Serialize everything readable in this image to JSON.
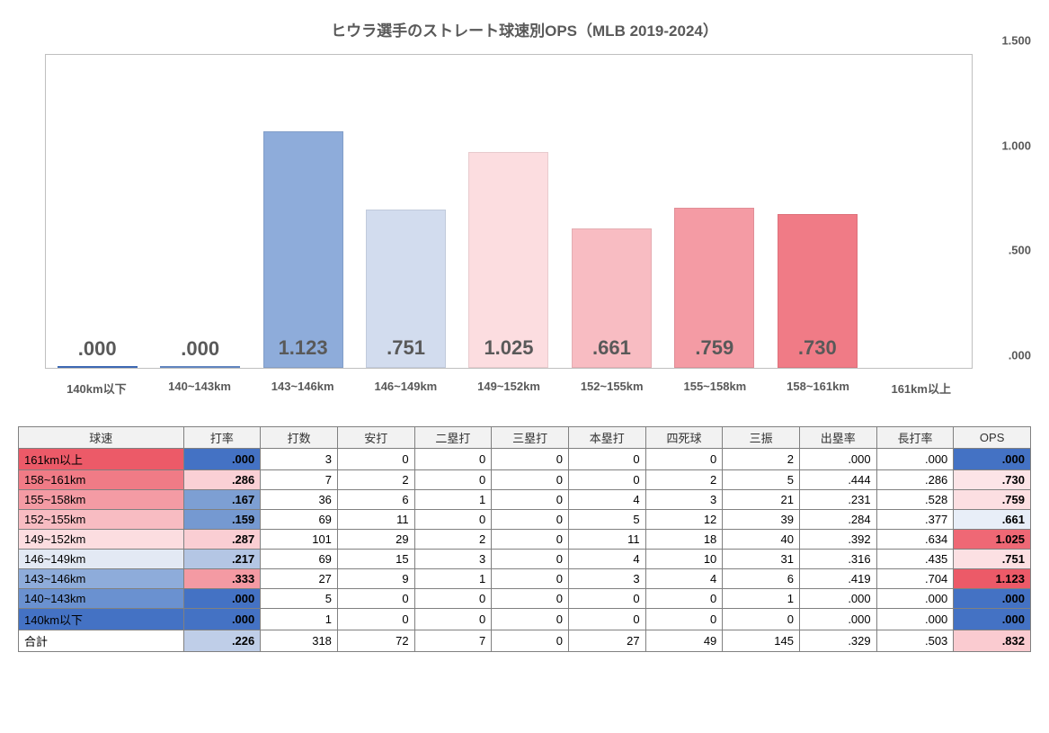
{
  "title": "ヒウラ選手のストレート球速別OPS（MLB 2019-2024）",
  "chart": {
    "type": "bar",
    "ylim": [
      0,
      1.5
    ],
    "yticks": [
      {
        "pos": 0,
        "label": ".000"
      },
      {
        "pos": 0.5,
        "label": ".500"
      },
      {
        "pos": 1.0,
        "label": "1.000"
      },
      {
        "pos": 1.5,
        "label": "1.500"
      }
    ],
    "yaxis_fontsize": 13,
    "xaxis_fontsize": 13,
    "label_fontsize": 22,
    "border_color": "#bfbfbf",
    "background_color": "#ffffff",
    "categories": [
      {
        "label": "140km以下",
        "value": 0,
        "disp": ".000",
        "color": "#4472c4"
      },
      {
        "label": "140~143km",
        "value": 0,
        "disp": ".000",
        "color": "#6a91d0"
      },
      {
        "label": "143~146km",
        "value": 1.123,
        "disp": "1.123",
        "color": "#8eacda"
      },
      {
        "label": "146~149km",
        "value": 0.751,
        "disp": ".751",
        "color": "#d2dcee"
      },
      {
        "label": "149~152km",
        "value": 1.025,
        "disp": "1.025",
        "color": "#fcdde0"
      },
      {
        "label": "152~155km",
        "value": 0.661,
        "disp": ".661",
        "color": "#f8bcc2"
      },
      {
        "label": "155~158km",
        "value": 0.759,
        "disp": ".759",
        "color": "#f49ba4"
      },
      {
        "label": "158~161km",
        "value": 0.73,
        "disp": ".730",
        "color": "#f07b86"
      },
      {
        "label": "161km以上",
        "value": 0,
        "disp": "",
        "color": "#ec5a68"
      }
    ]
  },
  "table": {
    "columns": [
      "球速",
      "打率",
      "打数",
      "安打",
      "二塁打",
      "三塁打",
      "本塁打",
      "四死球",
      "三振",
      "出塁率",
      "長打率",
      "OPS"
    ],
    "col_widths": [
      "180px",
      "84px",
      "84px",
      "84px",
      "84px",
      "84px",
      "84px",
      "84px",
      "84px",
      "84px",
      "84px",
      "84px"
    ],
    "avg_gradient": {
      "low": "#4472c4",
      "mid": "#fdeaec",
      "high": "#ec5a68"
    },
    "ops_gradient": {
      "low": "#4472c4",
      "mid": "#fdeaec",
      "high": "#ec5a68"
    },
    "rows": [
      {
        "cat": "161km以上",
        "cat_bg": "#ec5a68",
        "avg": ".000",
        "avg_bg": "#4472c4",
        "ab": "3",
        "h": "0",
        "b2": "0",
        "b3": "0",
        "hr": "0",
        "bb": "0",
        "so": "2",
        "obp": ".000",
        "slg": ".000",
        "ops": ".000",
        "ops_bg": "#4472c4"
      },
      {
        "cat": "158~161km",
        "cat_bg": "#f07b86",
        "avg": ".286",
        "avg_bg": "#fad0d5",
        "ab": "7",
        "h": "2",
        "b2": "0",
        "b3": "0",
        "hr": "0",
        "bb": "2",
        "so": "5",
        "obp": ".444",
        "slg": ".286",
        "ops": ".730",
        "ops_bg": "#fce4e7"
      },
      {
        "cat": "155~158km",
        "cat_bg": "#f49ba4",
        "avg": ".167",
        "avg_bg": "#7d9fd3",
        "ab": "36",
        "h": "6",
        "b2": "1",
        "b3": "0",
        "hr": "4",
        "bb": "3",
        "so": "21",
        "obp": ".231",
        "slg": ".528",
        "ops": ".759",
        "ops_bg": "#fcdfe2"
      },
      {
        "cat": "152~155km",
        "cat_bg": "#f8bcc2",
        "avg": ".159",
        "avg_bg": "#7599d1",
        "ab": "69",
        "h": "11",
        "b2": "0",
        "b3": "0",
        "hr": "5",
        "bb": "12",
        "so": "39",
        "obp": ".284",
        "slg": ".377",
        "ops": ".661",
        "ops_bg": "#e8eef8"
      },
      {
        "cat": "149~152km",
        "cat_bg": "#fcdde0",
        "avg": ".287",
        "avg_bg": "#faced3",
        "ab": "101",
        "h": "29",
        "b2": "2",
        "b3": "0",
        "hr": "11",
        "bb": "18",
        "so": "40",
        "obp": ".392",
        "slg": ".634",
        "ops": "1.025",
        "ops_bg": "#ef6875"
      },
      {
        "cat": "146~149km",
        "cat_bg": "#e3e9f4",
        "avg": ".217",
        "avg_bg": "#b4c6e4",
        "ab": "69",
        "h": "15",
        "b2": "3",
        "b3": "0",
        "hr": "4",
        "bb": "10",
        "so": "31",
        "obp": ".316",
        "slg": ".435",
        "ops": ".751",
        "ops_bg": "#fce0e3"
      },
      {
        "cat": "143~146km",
        "cat_bg": "#8eacda",
        "avg": ".333",
        "avg_bg": "#f49aa3",
        "ab": "27",
        "h": "9",
        "b2": "1",
        "b3": "0",
        "hr": "3",
        "bb": "4",
        "so": "6",
        "obp": ".419",
        "slg": ".704",
        "ops": "1.123",
        "ops_bg": "#ec5a68"
      },
      {
        "cat": "140~143km",
        "cat_bg": "#6a91d0",
        "avg": ".000",
        "avg_bg": "#4472c4",
        "ab": "5",
        "h": "0",
        "b2": "0",
        "b3": "0",
        "hr": "0",
        "bb": "0",
        "so": "1",
        "obp": ".000",
        "slg": ".000",
        "ops": ".000",
        "ops_bg": "#4472c4"
      },
      {
        "cat": "140km以下",
        "cat_bg": "#4472c4",
        "avg": ".000",
        "avg_bg": "#4472c4",
        "ab": "1",
        "h": "0",
        "b2": "0",
        "b3": "0",
        "hr": "0",
        "bb": "0",
        "so": "0",
        "obp": ".000",
        "slg": ".000",
        "ops": ".000",
        "ops_bg": "#4472c4"
      },
      {
        "cat": "合計",
        "cat_bg": "#ffffff",
        "avg": ".226",
        "avg_bg": "#bfcee8",
        "ab": "318",
        "h": "72",
        "b2": "7",
        "b3": "0",
        "hr": "27",
        "bb": "49",
        "so": "145",
        "obp": ".329",
        "slg": ".503",
        "ops": ".832",
        "ops_bg": "#facbd0"
      }
    ]
  }
}
